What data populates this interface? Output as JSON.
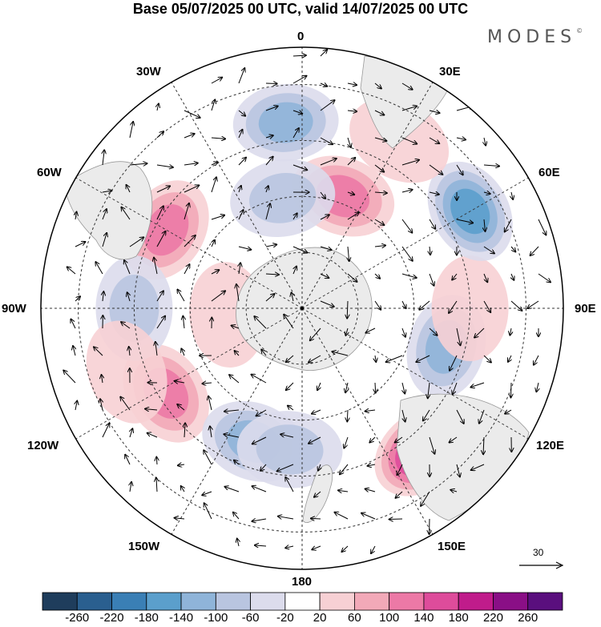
{
  "title": "Base 05/07/2025 00 UTC, valid 14/07/2025 00 UTC",
  "logo": "MODES",
  "logo_mark": "©",
  "longitude_labels": {
    "top": "0",
    "lon_30e": "30E",
    "lon_60e": "60E",
    "lon_90e": "90E",
    "lon_120e": "120E",
    "lon_150e": "150E",
    "bottom": "180",
    "lon_150w": "150W",
    "lon_120w": "120W",
    "lon_90w": "90W",
    "lon_60w": "60W",
    "lon_30w": "30W"
  },
  "reference_vector": {
    "label": "30"
  },
  "colorbar": {
    "ticks": [
      "-260",
      "-220",
      "-180",
      "-140",
      "-100",
      "-60",
      "-20",
      "20",
      "60",
      "100",
      "140",
      "180",
      "220",
      "260"
    ],
    "colors": [
      "#1f3d5c",
      "#2a5f8f",
      "#3a7fb5",
      "#5b9fcc",
      "#8fb4d9",
      "#b9c5e0",
      "#dcdcec",
      "#ffffff",
      "#f7d0d4",
      "#f2a9b8",
      "#ec79a6",
      "#de4c9b",
      "#c01c8b",
      "#8a0f86",
      "#5a0f7e"
    ]
  },
  "anomalies": [
    {
      "lon": -58,
      "lat": -47,
      "value": 130
    },
    {
      "lon": -20,
      "lat": -52,
      "value": -130
    },
    {
      "lon": -5,
      "lat": -52,
      "value": -60
    },
    {
      "lon": 40,
      "lat": -40,
      "value": 190
    },
    {
      "lon": 75,
      "lat": -50,
      "value": -130
    },
    {
      "lon": 90,
      "lat": -45,
      "value": 40
    },
    {
      "lon": 120,
      "lat": -38,
      "value": -150
    },
    {
      "lon": 150,
      "lat": -38,
      "value": 50
    },
    {
      "lon": 160,
      "lat": -58,
      "value": 120
    },
    {
      "lon": -170,
      "lat": -60,
      "value": -90
    },
    {
      "lon": -175,
      "lat": -40,
      "value": -130
    },
    {
      "lon": -120,
      "lat": -48,
      "value": 130
    },
    {
      "lon": -90,
      "lat": -45,
      "value": -70
    },
    {
      "lon": -70,
      "lat": -40,
      "value": 40
    },
    {
      "lon": -85,
      "lat": -70,
      "value": 40
    }
  ]
}
